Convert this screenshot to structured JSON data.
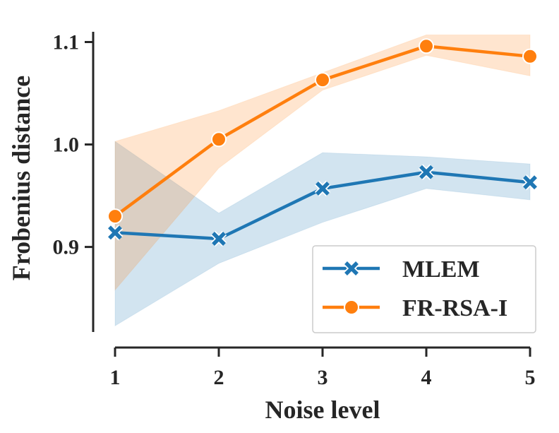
{
  "chart_data": {
    "type": "line",
    "xlabel": "Noise level",
    "ylabel": "Frobenius distance",
    "x": [
      1,
      2,
      3,
      4,
      5
    ],
    "xlim": [
      1,
      5
    ],
    "ylim": [
      0.817,
      1.11
    ],
    "yticks": [
      0.9,
      1.0,
      1.1
    ],
    "ytick_labels": [
      "0.9",
      "1.0",
      "1.1"
    ],
    "xtick_labels": [
      "1",
      "2",
      "3",
      "4",
      "5"
    ],
    "grid": false,
    "legend_position": "lower-right",
    "series": [
      {
        "name": "MLEM",
        "color": "#1f77b4",
        "marker": "x",
        "values": [
          0.914,
          0.908,
          0.957,
          0.973,
          0.963
        ],
        "ci_low": [
          0.823,
          0.884,
          0.924,
          0.957,
          0.946
        ],
        "ci_high": [
          1.003,
          0.933,
          0.992,
          0.988,
          0.981
        ]
      },
      {
        "name": "FR-RSA-I",
        "color": "#ff7f0e",
        "marker": "circle",
        "values": [
          0.93,
          1.005,
          1.063,
          1.096,
          1.086
        ],
        "ci_low": [
          0.858,
          0.977,
          1.053,
          1.087,
          1.067
        ],
        "ci_high": [
          1.003,
          1.033,
          1.07,
          1.107,
          1.107
        ]
      }
    ]
  }
}
